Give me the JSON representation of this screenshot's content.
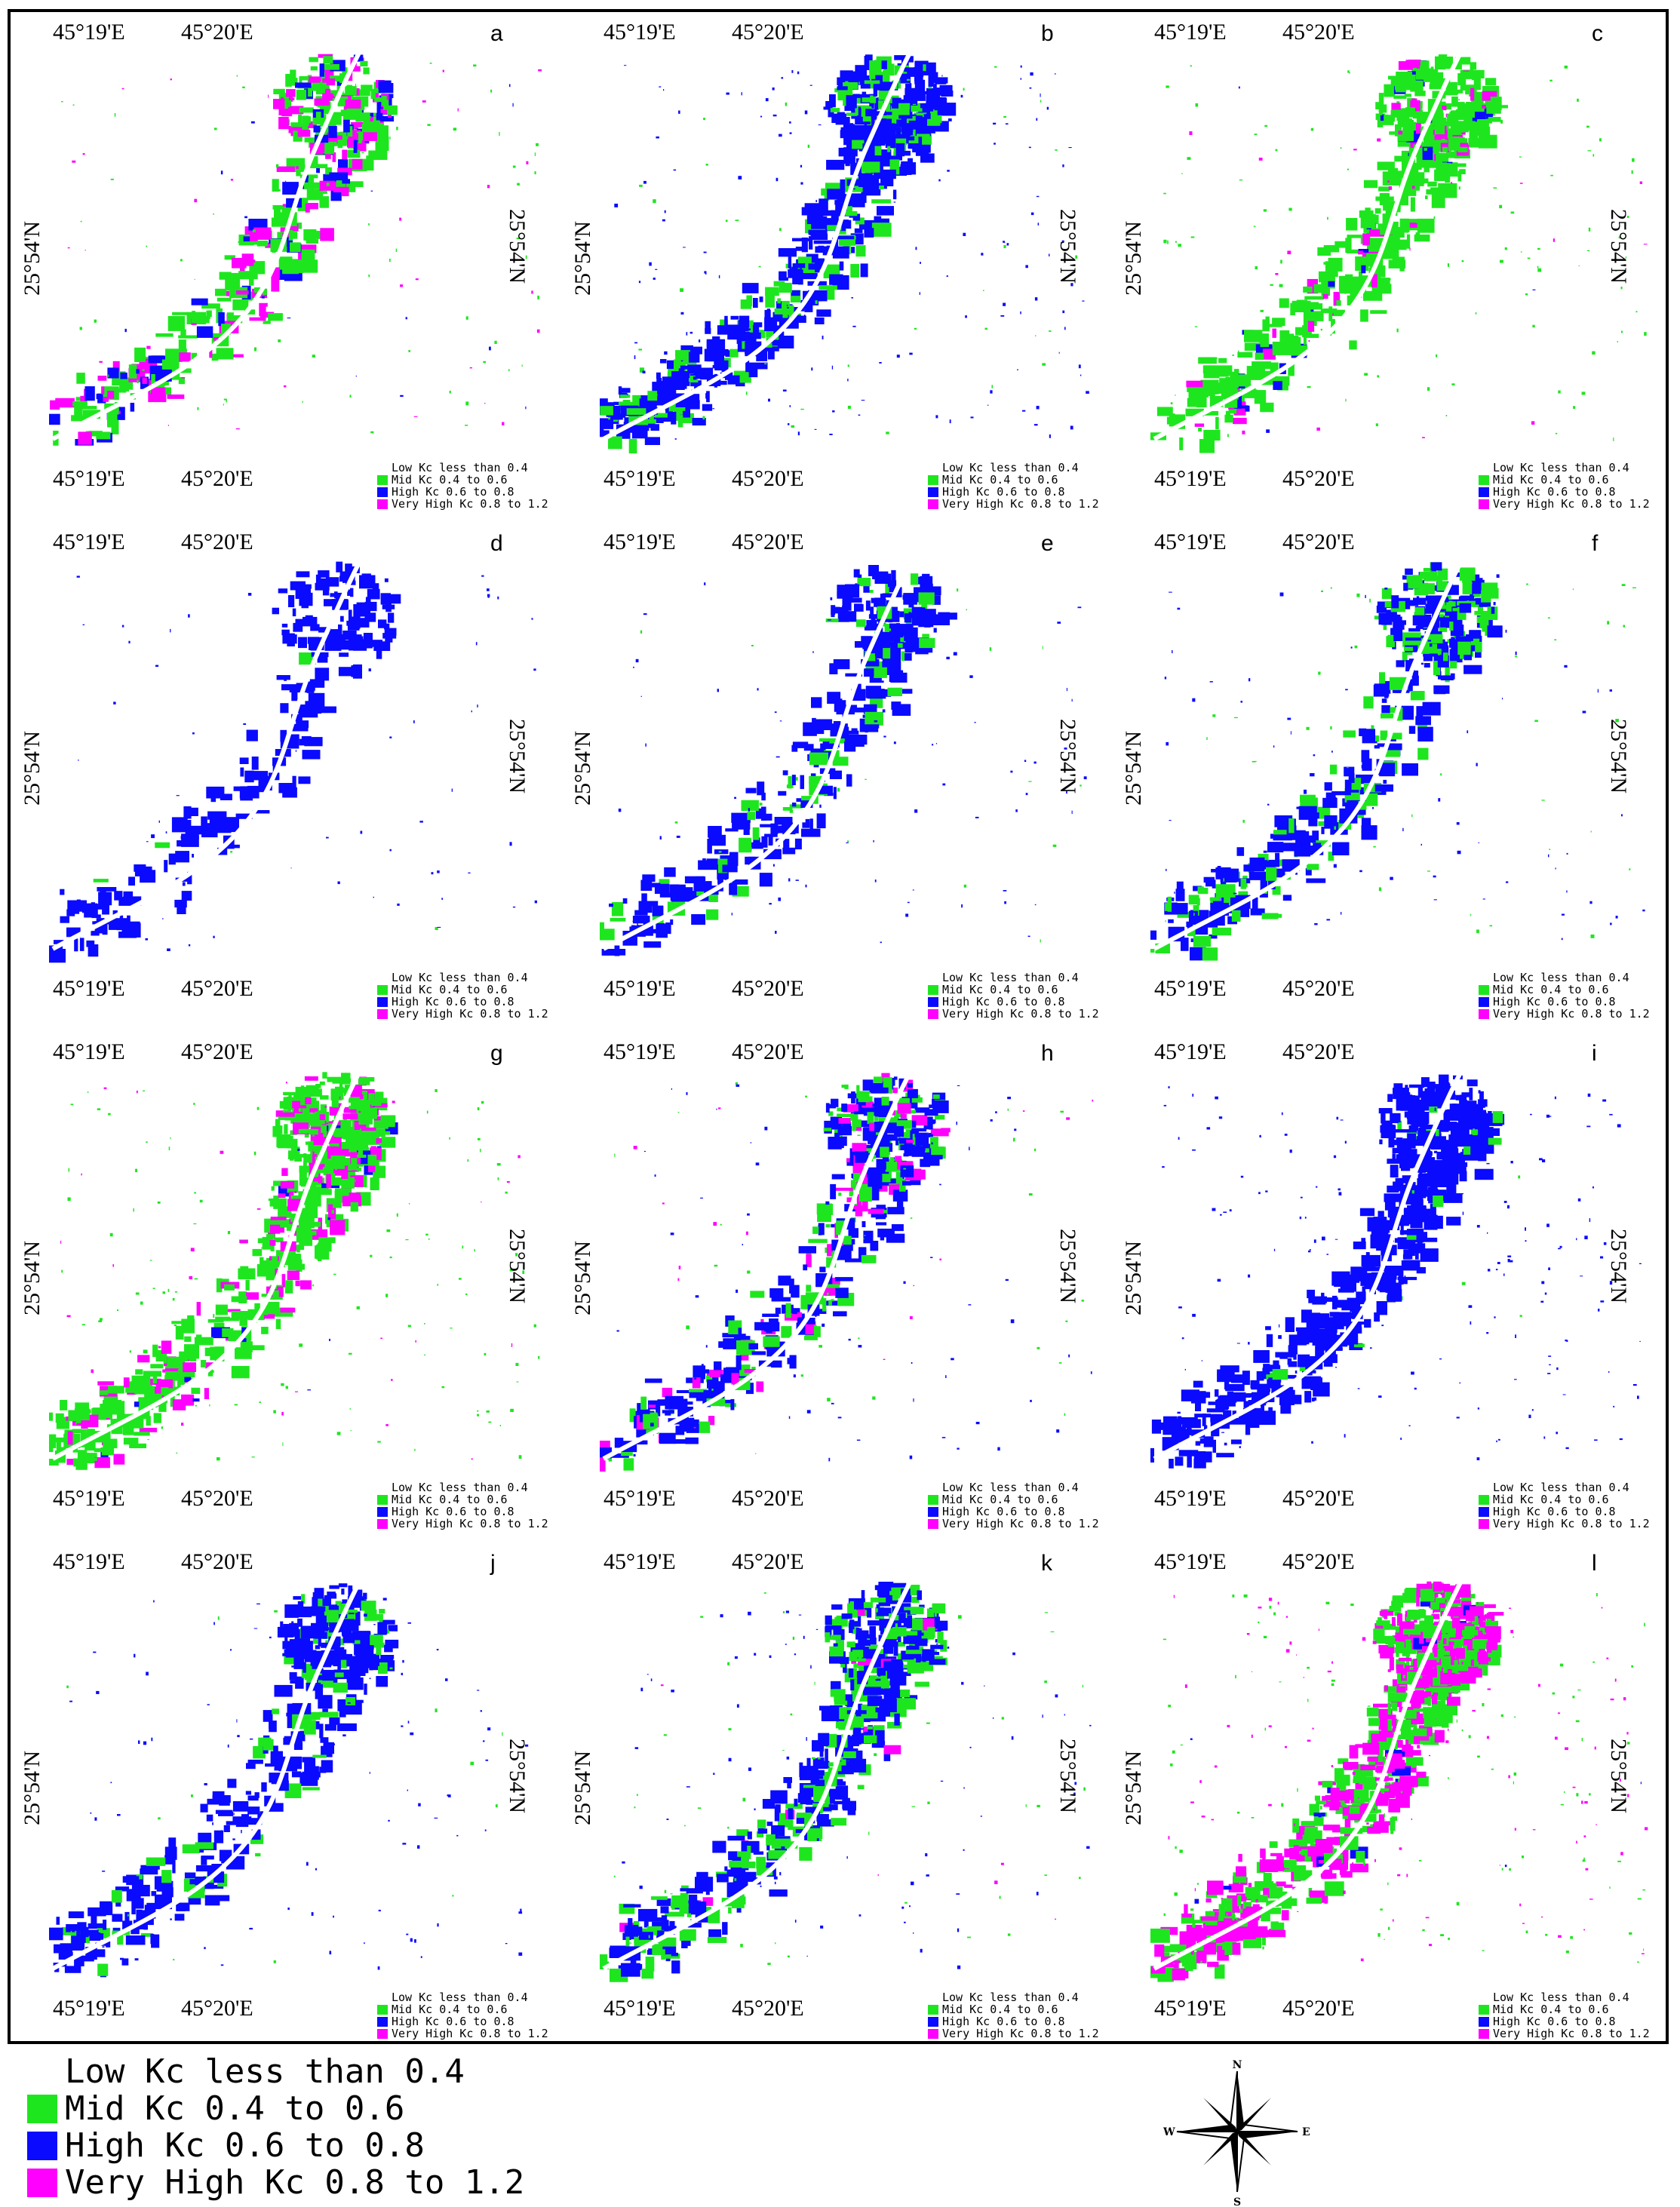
{
  "colors": {
    "low": "#ffffff",
    "mid": "#1ee61e",
    "high": "#0a0aff",
    "very_high": "#ff00ff",
    "frame": "#000000"
  },
  "coords": {
    "lon_left": "45°19'E",
    "lon_right": "45°20'E",
    "lat": "25°54'N"
  },
  "legend": [
    {
      "key": "low",
      "label": "Low Kc less than 0.4"
    },
    {
      "key": "mid",
      "label": "Mid Kc 0.4 to 0.6"
    },
    {
      "key": "high",
      "label": "High Kc 0.6 to 0.8"
    },
    {
      "key": "very_high",
      "label": "Very High Kc 0.8 to 1.2"
    }
  ],
  "panels": [
    {
      "label": "a",
      "mix": {
        "mid": 0.55,
        "high": 0.15,
        "very_high": 0.3
      },
      "density": 0.55
    },
    {
      "label": "b",
      "mix": {
        "mid": 0.25,
        "high": 0.75,
        "very_high": 0.0
      },
      "density": 0.85
    },
    {
      "label": "c",
      "mix": {
        "mid": 0.85,
        "high": 0.05,
        "very_high": 0.1
      },
      "density": 0.65
    },
    {
      "label": "d",
      "mix": {
        "mid": 0.02,
        "high": 0.98,
        "very_high": 0.0
      },
      "density": 0.3
    },
    {
      "label": "e",
      "mix": {
        "mid": 0.12,
        "high": 0.88,
        "very_high": 0.0
      },
      "density": 0.45
    },
    {
      "label": "f",
      "mix": {
        "mid": 0.35,
        "high": 0.65,
        "very_high": 0.0
      },
      "density": 0.55
    },
    {
      "label": "g",
      "mix": {
        "mid": 0.72,
        "high": 0.04,
        "very_high": 0.24
      },
      "density": 0.75
    },
    {
      "label": "h",
      "mix": {
        "mid": 0.3,
        "high": 0.55,
        "very_high": 0.15
      },
      "density": 0.55
    },
    {
      "label": "i",
      "mix": {
        "mid": 0.02,
        "high": 0.98,
        "very_high": 0.0
      },
      "density": 0.8
    },
    {
      "label": "j",
      "mix": {
        "mid": 0.18,
        "high": 0.82,
        "very_high": 0.0
      },
      "density": 0.5
    },
    {
      "label": "k",
      "mix": {
        "mid": 0.35,
        "high": 0.62,
        "very_high": 0.03
      },
      "density": 0.65
    },
    {
      "label": "l",
      "mix": {
        "mid": 0.45,
        "high": 0.03,
        "very_high": 0.52
      },
      "density": 1.0
    }
  ],
  "compass": {
    "n": "N",
    "s": "S",
    "e": "E",
    "w": "W"
  }
}
